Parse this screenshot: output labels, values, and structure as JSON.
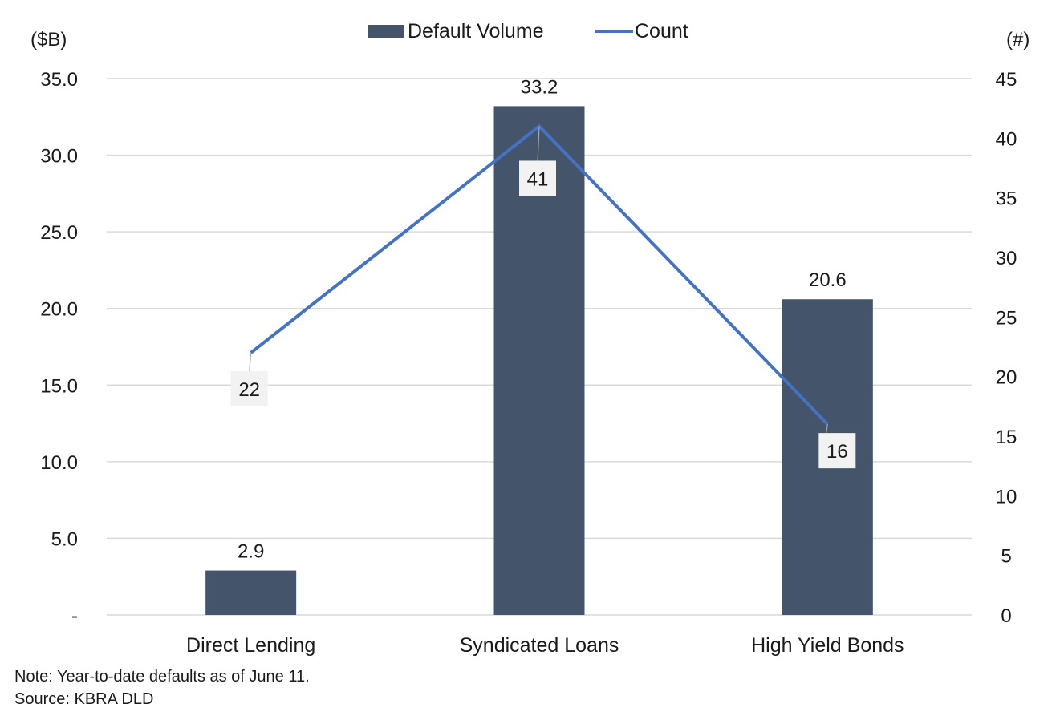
{
  "chart_data": {
    "type": "bar",
    "categories": [
      "Direct Lending",
      "Syndicated Loans",
      "High Yield Bonds"
    ],
    "series": [
      {
        "name": "Default Volume",
        "type": "bar",
        "axis": "left",
        "values": [
          2.9,
          33.2,
          20.6
        ],
        "labels": [
          "2.9",
          "33.2",
          "20.6"
        ],
        "color": "#44546a"
      },
      {
        "name": "Count",
        "type": "line",
        "axis": "right",
        "values": [
          22,
          41,
          16
        ],
        "labels": [
          "22",
          "41",
          "16"
        ],
        "color": "#4472c4"
      }
    ],
    "y_left": {
      "unit_label": "($B)",
      "ylim": [
        0,
        35
      ],
      "ticks": [
        0,
        5,
        10,
        15,
        20,
        25,
        30,
        35
      ],
      "tick_labels": [
        "-",
        "5.0",
        "10.0",
        "15.0",
        "20.0",
        "25.0",
        "30.0",
        "35.0"
      ]
    },
    "y_right": {
      "unit_label": "(#)",
      "ylim": [
        0,
        45
      ],
      "ticks": [
        0,
        5,
        10,
        15,
        20,
        25,
        30,
        35,
        40,
        45
      ],
      "tick_labels": [
        "0",
        "5",
        "10",
        "15",
        "20",
        "25",
        "30",
        "35",
        "40",
        "45"
      ]
    },
    "legend": {
      "position": "top-center",
      "entries": [
        "Default Volume",
        "Count"
      ]
    },
    "grid": true
  },
  "notes": {
    "note": "Note: Year-to-date defaults as of June 11.",
    "source": "Source: KBRA DLD"
  },
  "colors": {
    "bar": "#44546a",
    "line": "#4472c4",
    "grid": "#d9d9d9",
    "label_box": "#f2f2f2"
  }
}
